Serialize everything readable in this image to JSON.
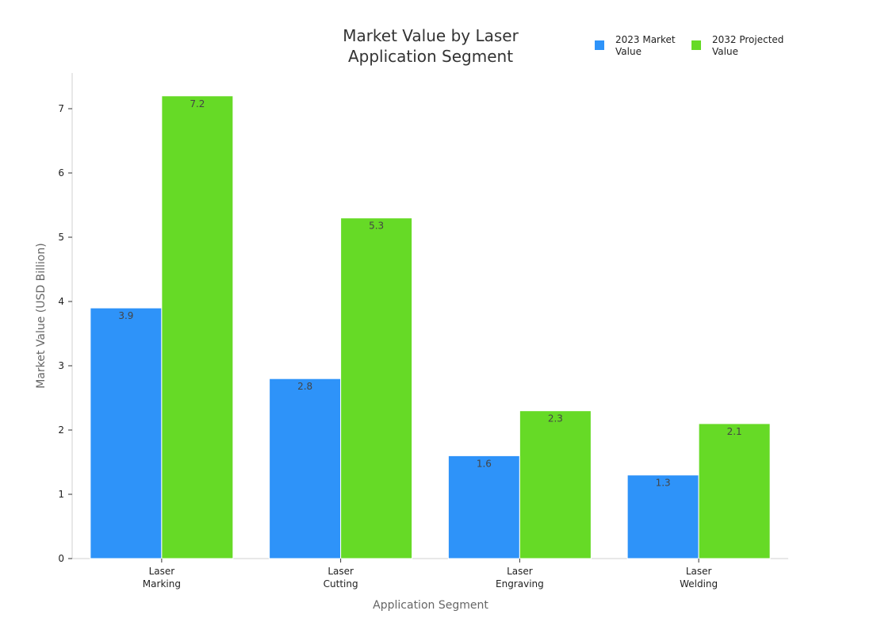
{
  "chart_data": {
    "type": "bar",
    "title": [
      "Market Value by Laser",
      "Application Segment"
    ],
    "xlabel": "Application Segment",
    "ylabel": "Market Value (USD Billion)",
    "categories": [
      [
        "Laser",
        "Marking"
      ],
      [
        "Laser",
        "Cutting"
      ],
      [
        "Laser",
        "Engraving"
      ],
      [
        "Laser",
        "Welding"
      ]
    ],
    "series": [
      {
        "name": [
          "2023 Market",
          "Value"
        ],
        "values": [
          3.9,
          2.8,
          1.6,
          1.3
        ],
        "color": "#2e93f9"
      },
      {
        "name": [
          "2032 Projected",
          "Value"
        ],
        "values": [
          7.2,
          5.3,
          2.3,
          2.1
        ],
        "color": "#66da26"
      }
    ],
    "ylim": [
      0,
      7.5
    ],
    "yticks": [
      0,
      1,
      2,
      3,
      4,
      5,
      6,
      7
    ],
    "grid": false,
    "legend": "top-right"
  }
}
